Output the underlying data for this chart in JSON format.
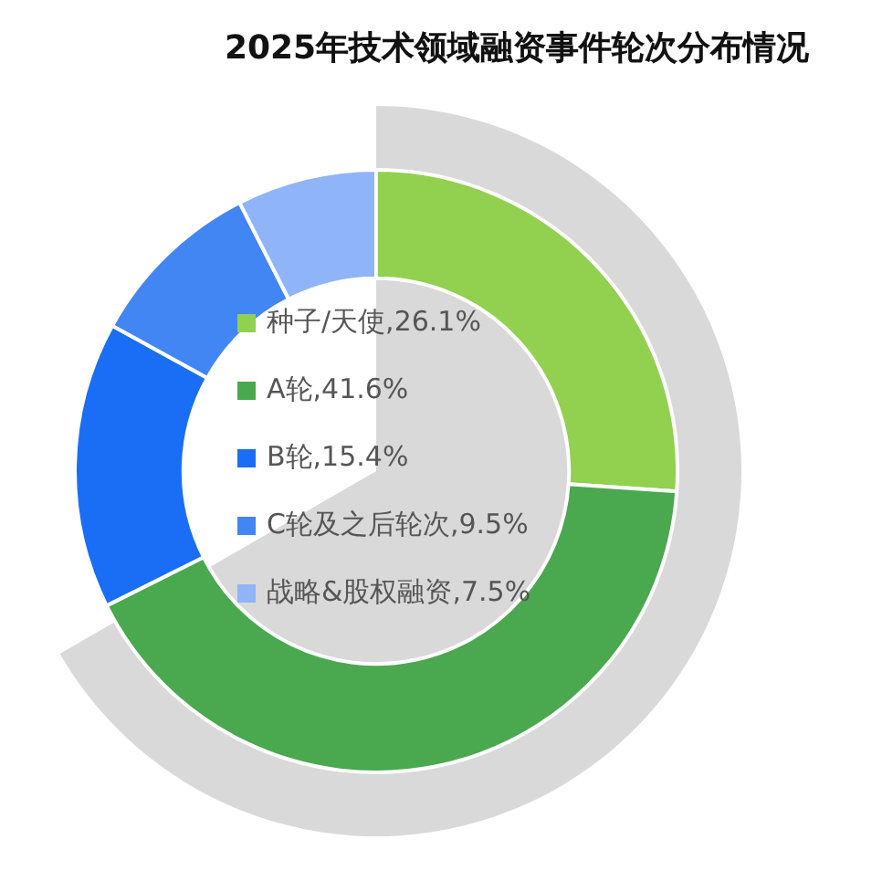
{
  "chart_data": {
    "type": "donut",
    "title": "2025年技术领域融资事件轮次分布情况",
    "categories": [
      "种子/天使",
      "A轮",
      "B轮",
      "C轮及之后轮次",
      "战略&股权融资"
    ],
    "values": [
      26.1,
      41.6,
      15.4,
      9.5,
      7.5
    ],
    "value_labels": [
      "26.1%",
      "41.6%",
      "15.4%",
      "9.5%",
      "7.5%"
    ],
    "colors": [
      "#92d050",
      "#4aa84f",
      "#1a6ef5",
      "#4186f2",
      "#8fb4f7"
    ],
    "legend": "left"
  }
}
